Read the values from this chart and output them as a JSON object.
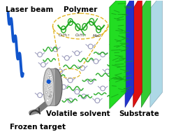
{
  "bg_color": "#ffffff",
  "labels": {
    "laser_beam": "Laser beam",
    "polymer": "Polymer",
    "volatile_solvent": "Volatile solvent",
    "frozen_target": "Frozen target",
    "substrate": "Substrate"
  },
  "laser_color": "#1155cc",
  "polymer_color": "#22aa22",
  "solvent_color": "#9999bb",
  "dashed_ellipse_color": "#ddaa00",
  "layer_colors_front_to_back": [
    "#33dd33",
    "#33dd33",
    "#2244dd",
    "#cc1111",
    "#33dd33",
    "#add8e6"
  ],
  "frozen_target_gray": "#999999",
  "frozen_target_light": "#cccccc"
}
